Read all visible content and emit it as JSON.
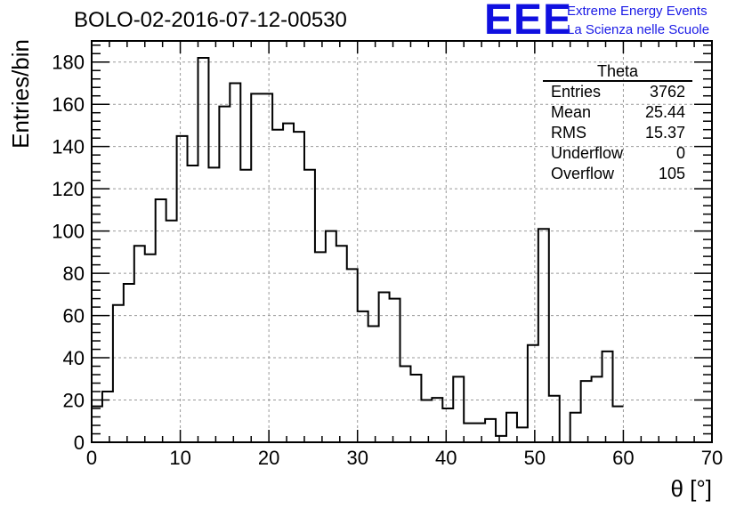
{
  "header": {
    "title": "BOLO-02-2016-07-12-00530",
    "logo_text": "EEE",
    "experiment_name": "Extreme Energy Events",
    "experiment_subtitle": "La Scienza nelle Scuole",
    "logo_color": "#1010e0"
  },
  "stats": {
    "title": "Theta",
    "rows": [
      {
        "label": "Entries",
        "value": "3762"
      },
      {
        "label": "Mean",
        "value": "25.44"
      },
      {
        "label": "RMS",
        "value": "15.37"
      },
      {
        "label": "Underflow",
        "value": "0"
      },
      {
        "label": "Overflow",
        "value": "105"
      }
    ]
  },
  "chart_data": {
    "type": "bar",
    "style": "step-histogram",
    "title": "BOLO-02-2016-07-12-00530",
    "xlabel": "θ [°]",
    "ylabel": "Entries/bin",
    "xlim": [
      0,
      70
    ],
    "ylim": [
      0,
      190
    ],
    "grid": true,
    "xticks": [
      0,
      10,
      20,
      30,
      40,
      50,
      60,
      70
    ],
    "yticks": [
      0,
      20,
      40,
      60,
      80,
      100,
      120,
      140,
      160,
      180
    ],
    "bin_width": 1.2,
    "bin_edges_start": 0,
    "values": [
      17,
      24,
      65,
      75,
      93,
      89,
      115,
      105,
      145,
      131,
      182,
      130,
      159,
      170,
      129,
      165,
      165,
      148,
      151,
      147,
      129,
      90,
      100,
      93,
      82,
      62,
      55,
      71,
      68,
      36,
      32,
      20,
      21,
      16,
      31,
      9,
      9,
      11,
      3,
      14,
      7,
      46,
      101,
      22,
      0,
      14,
      29,
      31,
      43,
      17
    ],
    "line_color": "#000000"
  }
}
